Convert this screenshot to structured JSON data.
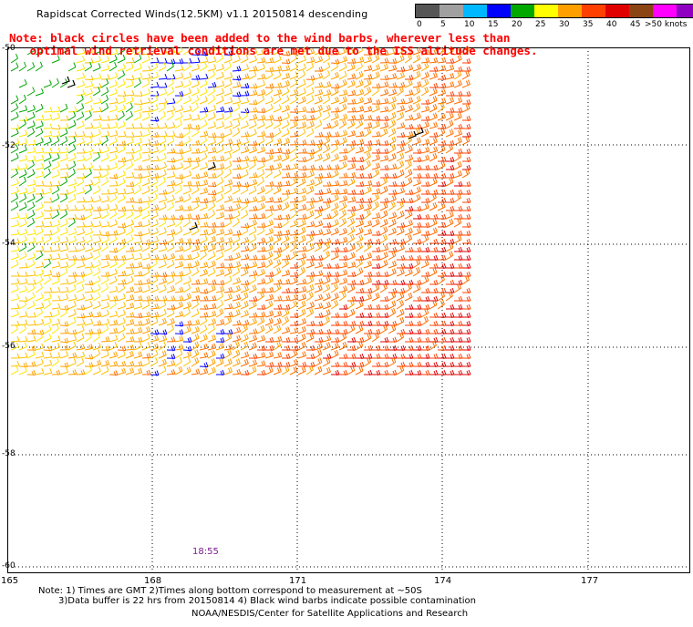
{
  "header": {
    "title": "Rapidscat Corrected Winds(12.5KM) v1.1 20150814 descending",
    "note_line1": "Note: black circles have been added to the wind barbs, wherever less than",
    "note_line2": "   optimal wind retrieval conditions are met due to the ISS altitude changes."
  },
  "legend": {
    "unit": ">50 knots",
    "entries": [
      {
        "label": "0",
        "color": "#555555"
      },
      {
        "label": "5",
        "color": "#a0a0a0"
      },
      {
        "label": "10",
        "color": "#00b8ff"
      },
      {
        "label": "15",
        "color": "#0000ff"
      },
      {
        "label": "20",
        "color": "#00a800"
      },
      {
        "label": "25",
        "color": "#ffff00"
      },
      {
        "label": "30",
        "color": "#ffa000"
      },
      {
        "label": "35",
        "color": "#ff4000"
      },
      {
        "label": "40",
        "color": "#e00000"
      },
      {
        "label": "45",
        "color": "#8b4513"
      },
      {
        "label": "",
        "color": "#ff00ff"
      },
      {
        "label": "",
        "color": "#9000c0"
      },
      {
        "label": "",
        "color": "#30009a"
      }
    ]
  },
  "map": {
    "lat_labels": [
      "-50",
      "-52",
      "-54",
      "-56",
      "-58",
      "-60"
    ],
    "lon_labels": [
      "165",
      "168",
      "171",
      "174",
      "177"
    ],
    "pass_time": "18:55"
  },
  "footer": {
    "note1": "Note: 1) Times are GMT 2)Times along bottom correspond to measurement at ~50S",
    "note2": "3)Data buffer is 22 hrs from 20150814 4) Black wind barbs indicate possible contamination",
    "credit": "NOAA/NESDIS/Center for Satellite Applications and Research"
  }
}
